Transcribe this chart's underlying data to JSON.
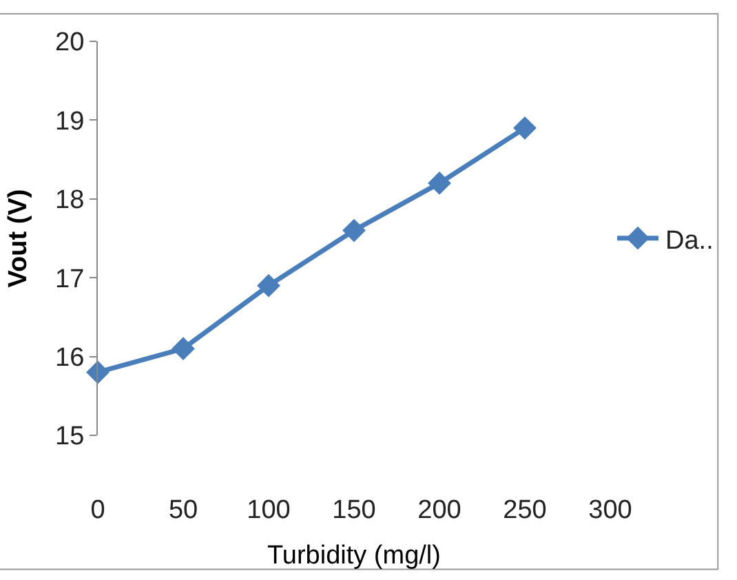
{
  "chart_data": {
    "type": "line",
    "xlabel": "Turbidity (mg/l)",
    "ylabel": "Vout (V)",
    "x": [
      0,
      50,
      100,
      150,
      200,
      250
    ],
    "series": [
      {
        "name": "Da..",
        "color": "#4a7ebb",
        "values": [
          15.8,
          16.1,
          16.9,
          17.6,
          18.2,
          18.9
        ]
      }
    ],
    "xlim": [
      0,
      300
    ],
    "xticks": [
      0,
      50,
      100,
      150,
      200,
      250,
      300
    ],
    "ylim": [
      15,
      20
    ],
    "yticks": [
      15,
      16,
      17,
      18,
      19,
      20
    ],
    "legend": "right",
    "marker": "diamond",
    "line_style": "solid"
  }
}
